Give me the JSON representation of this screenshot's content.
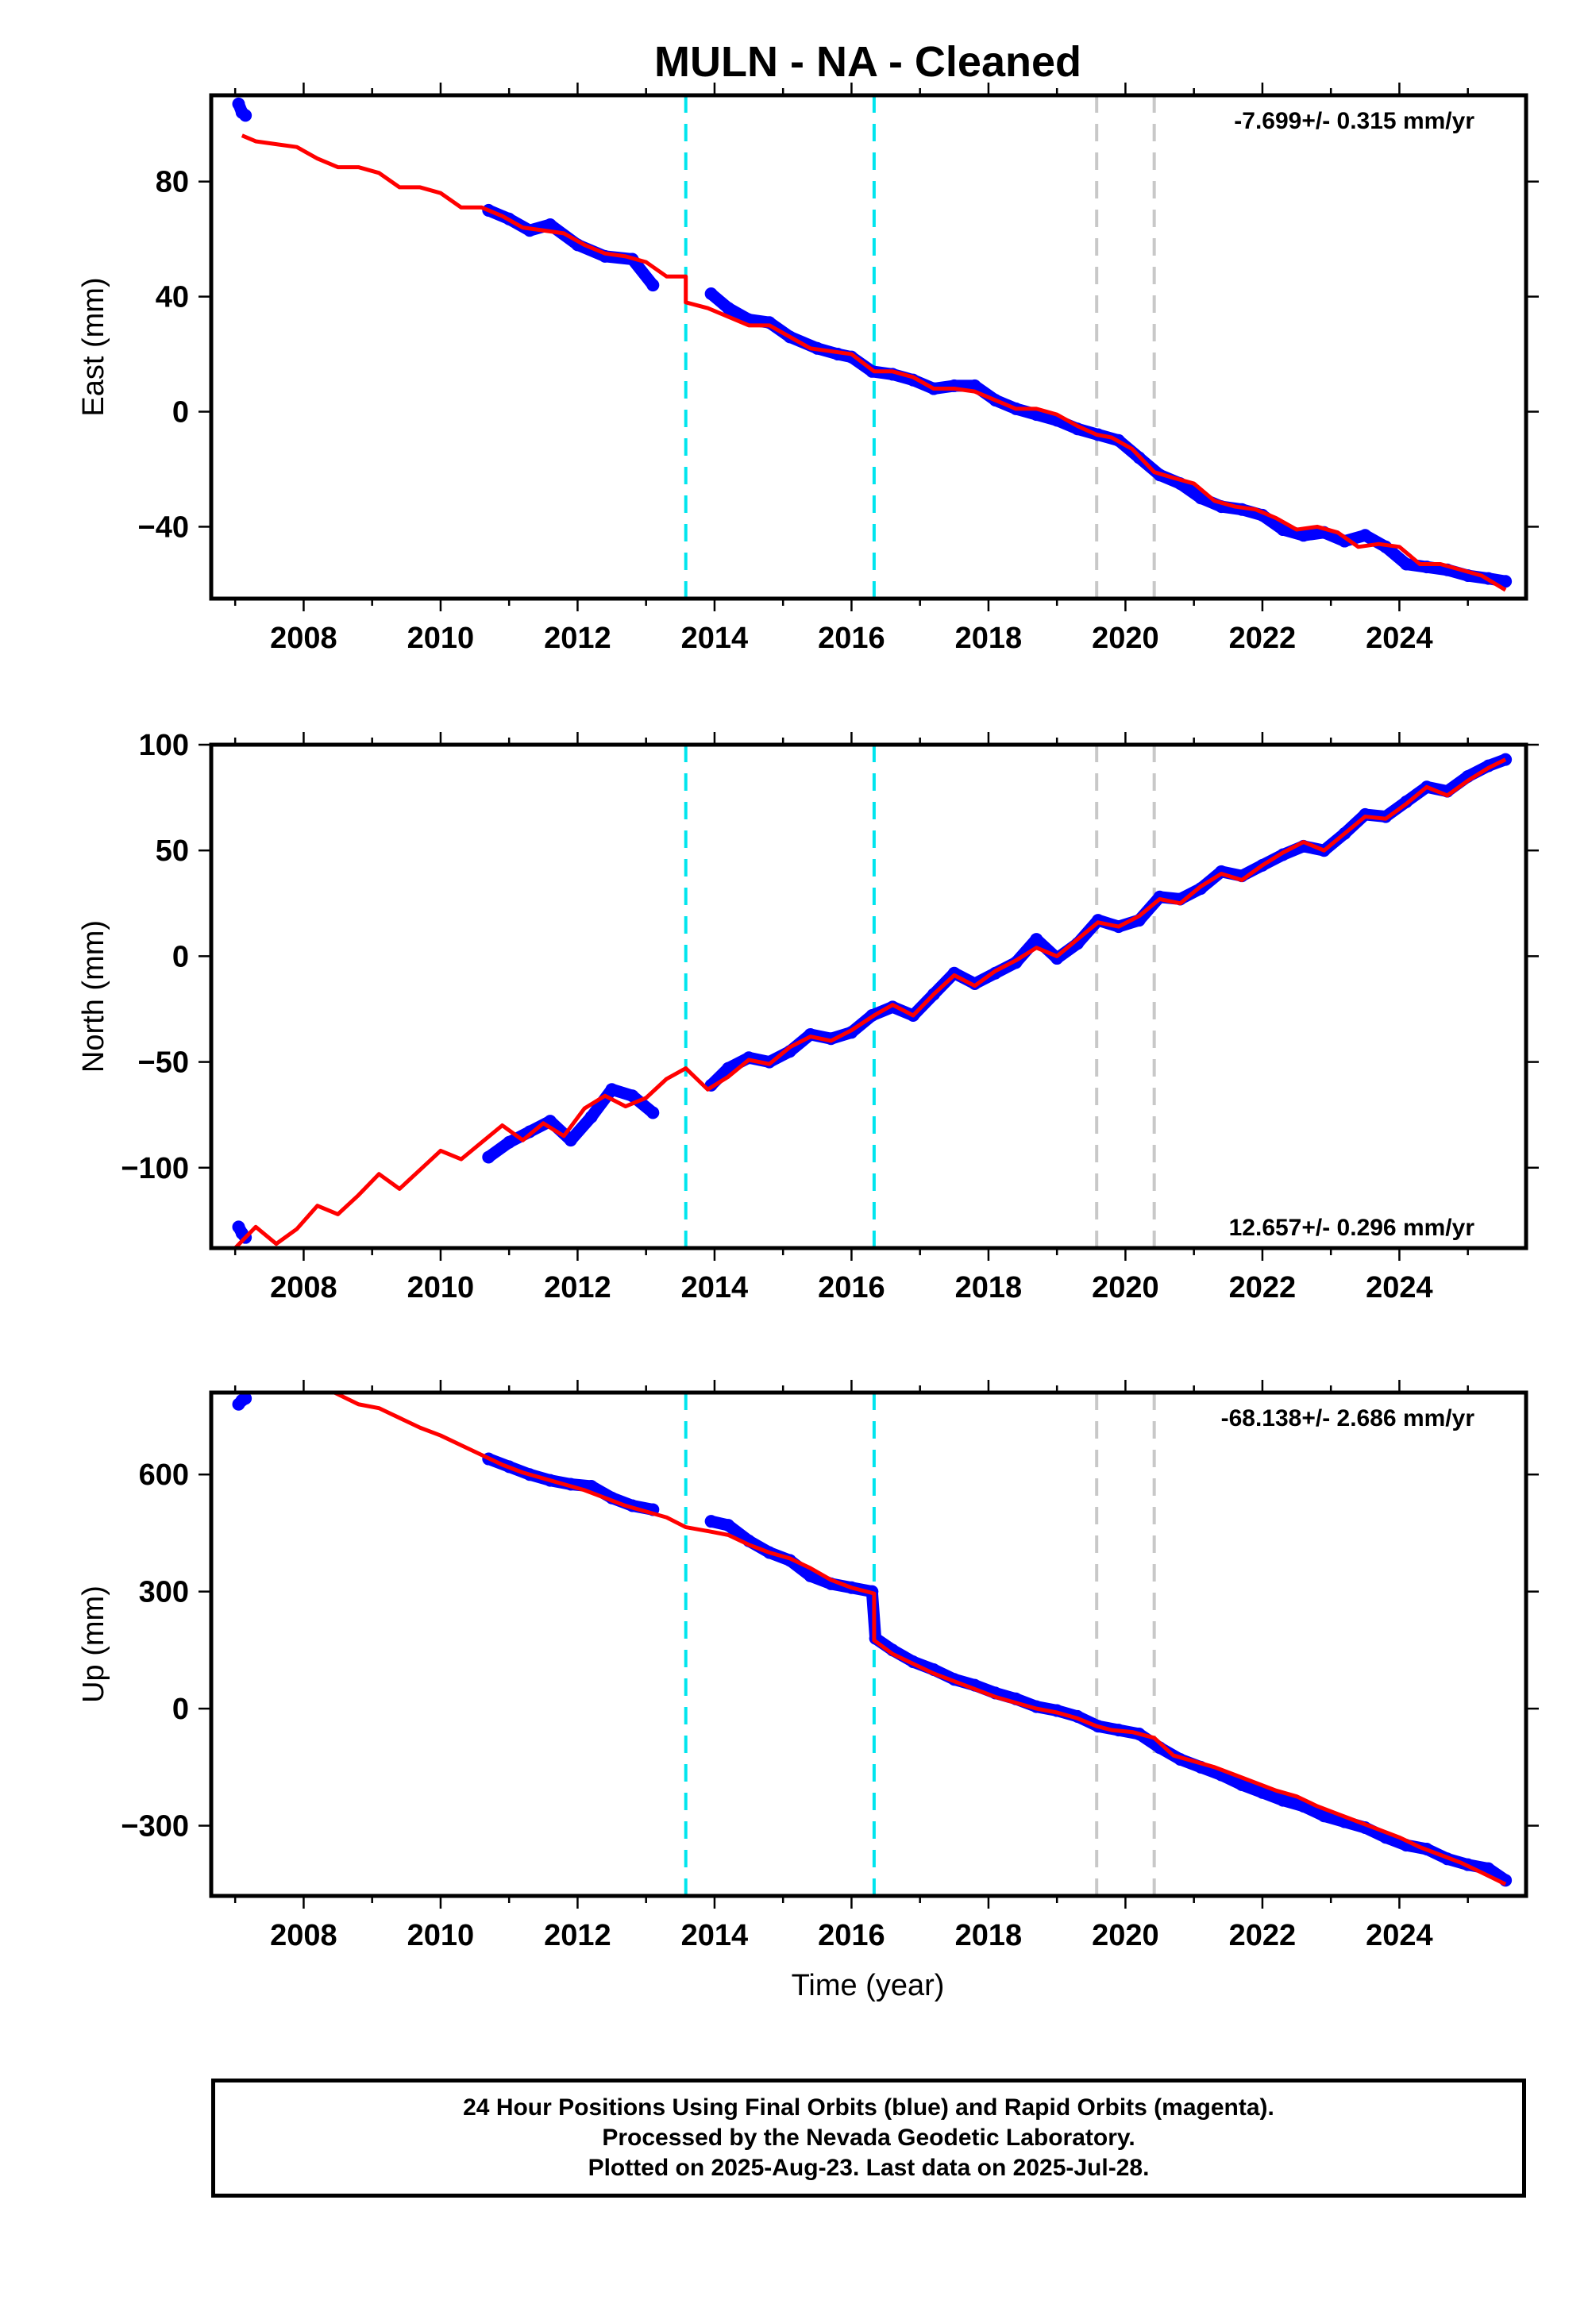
{
  "title": "MULN  - NA - Cleaned",
  "colors": {
    "observations": "#0000ff",
    "model": "#ff0000",
    "antenna_change": "#00e5ee",
    "equipment_change": "#c8c8c8"
  },
  "chart_data": [
    {
      "type": "scatter",
      "component": "East",
      "ylabel": "East (mm)",
      "xlim": [
        2006.65,
        2025.85
      ],
      "ylim": [
        -65,
        110
      ],
      "yticks": [
        -40,
        0,
        40,
        80
      ],
      "xticks": [
        2008,
        2010,
        2012,
        2014,
        2016,
        2018,
        2020,
        2022,
        2024
      ],
      "rate_label": "-7.699+/- 0.315 mm/yr",
      "rate_position": "top-right",
      "antenna_change_epochs": [
        2013.58,
        2016.33
      ],
      "equipment_change_epochs": [
        2019.58,
        2020.42
      ],
      "series": [
        {
          "role": "observations",
          "segments": [
            {
              "x": [
                2007.05,
                2007.1,
                2007.15
              ],
              "y": [
                107,
                104,
                103
              ]
            },
            {
              "x": [
                2010.7,
                2011.0,
                2011.3,
                2011.6,
                2012.0,
                2012.4,
                2012.8,
                2013.1
              ],
              "y": [
                70,
                67,
                63,
                65,
                58,
                54,
                53,
                44
              ]
            },
            {
              "x": [
                2013.95,
                2014.2,
                2014.5,
                2014.8,
                2015.1,
                2015.5,
                2015.8,
                2016.0,
                2016.3,
                2016.6,
                2016.9,
                2017.2,
                2017.5,
                2017.8,
                2018.1,
                2018.4,
                2018.7,
                2019.0,
                2019.3,
                2019.6,
                2019.9,
                2020.2,
                2020.5,
                2020.8,
                2021.1,
                2021.4,
                2021.7,
                2022.0,
                2022.3,
                2022.6,
                2022.9,
                2023.2,
                2023.5,
                2023.8,
                2024.1,
                2024.4,
                2024.7,
                2025.0,
                2025.3,
                2025.55
              ],
              "y": [
                41,
                36,
                32,
                31,
                26,
                22,
                20,
                19,
                14,
                13,
                11,
                8,
                9,
                9,
                4,
                1,
                -1,
                -3,
                -6,
                -8,
                -10,
                -16,
                -22,
                -25,
                -30,
                -33,
                -34,
                -36,
                -41,
                -43,
                -42,
                -45,
                -43,
                -47,
                -53,
                -54,
                -55,
                -57,
                -58,
                -59
              ]
            }
          ]
        },
        {
          "role": "model",
          "x": [
            2007.1,
            2007.3,
            2007.6,
            2007.9,
            2008.2,
            2008.5,
            2008.8,
            2009.1,
            2009.4,
            2009.7,
            2010.0,
            2010.3,
            2010.6,
            2010.9,
            2011.2,
            2011.5,
            2011.8,
            2012.1,
            2012.4,
            2012.7,
            2013.0,
            2013.3,
            2013.58,
            2013.58,
            2013.9,
            2014.2,
            2014.5,
            2014.8,
            2015.1,
            2015.4,
            2015.7,
            2016.0,
            2016.33,
            2016.6,
            2016.9,
            2017.2,
            2017.5,
            2017.8,
            2018.1,
            2018.4,
            2018.7,
            2019.0,
            2019.3,
            2019.58,
            2019.8,
            2020.1,
            2020.42,
            2020.7,
            2021.0,
            2021.3,
            2021.6,
            2021.9,
            2022.2,
            2022.5,
            2022.8,
            2023.1,
            2023.4,
            2023.7,
            2024.0,
            2024.3,
            2024.6,
            2024.9,
            2025.2,
            2025.55
          ],
          "y": [
            96,
            94,
            93,
            92,
            88,
            85,
            85,
            83,
            78,
            78,
            76,
            71,
            71,
            68,
            64,
            63,
            62,
            58,
            55,
            54,
            52,
            47,
            47,
            38,
            36,
            33,
            30,
            30,
            26,
            22,
            21,
            20,
            14,
            14,
            12,
            8,
            8,
            7,
            4,
            1,
            1,
            -1,
            -5,
            -8,
            -9,
            -13,
            -21,
            -23,
            -25,
            -31,
            -33,
            -34,
            -37,
            -41,
            -40,
            -42,
            -47,
            -46,
            -47,
            -53,
            -53,
            -55,
            -57,
            -62
          ]
        }
      ]
    },
    {
      "type": "scatter",
      "component": "North",
      "ylabel": "North (mm)",
      "xlim": [
        2006.65,
        2025.85
      ],
      "ylim": [
        -138,
        100
      ],
      "yticks": [
        -100,
        -50,
        0,
        50,
        100
      ],
      "xticks": [
        2008,
        2010,
        2012,
        2014,
        2016,
        2018,
        2020,
        2022,
        2024
      ],
      "rate_label": "12.657+/- 0.296 mm/yr",
      "rate_position": "bottom-right",
      "antenna_change_epochs": [
        2013.58,
        2016.33
      ],
      "equipment_change_epochs": [
        2019.58,
        2020.42
      ],
      "series": [
        {
          "role": "observations",
          "segments": [
            {
              "x": [
                2007.05,
                2007.1,
                2007.15
              ],
              "y": [
                -128,
                -131,
                -133
              ]
            },
            {
              "x": [
                2010.7,
                2011.0,
                2011.3,
                2011.6,
                2011.9,
                2012.2,
                2012.5,
                2012.8,
                2013.1
              ],
              "y": [
                -95,
                -88,
                -83,
                -78,
                -87,
                -76,
                -63,
                -66,
                -74
              ]
            },
            {
              "x": [
                2013.95,
                2014.2,
                2014.5,
                2014.8,
                2015.1,
                2015.4,
                2015.7,
                2016.0,
                2016.3,
                2016.6,
                2016.9,
                2017.2,
                2017.5,
                2017.8,
                2018.1,
                2018.4,
                2018.7,
                2019.0,
                2019.3,
                2019.6,
                2019.9,
                2020.2,
                2020.5,
                2020.8,
                2021.1,
                2021.4,
                2021.7,
                2022.0,
                2022.3,
                2022.6,
                2022.9,
                2023.2,
                2023.5,
                2023.8,
                2024.1,
                2024.4,
                2024.7,
                2025.0,
                2025.3,
                2025.55
              ],
              "y": [
                -61,
                -53,
                -48,
                -50,
                -45,
                -37,
                -39,
                -36,
                -28,
                -24,
                -28,
                -18,
                -8,
                -13,
                -8,
                -3,
                8,
                -1,
                6,
                17,
                14,
                17,
                28,
                27,
                32,
                40,
                38,
                43,
                48,
                52,
                50,
                58,
                67,
                66,
                73,
                80,
                78,
                85,
                90,
                93
              ]
            }
          ]
        },
        {
          "role": "model",
          "x": [
            2007.0,
            2007.3,
            2007.6,
            2007.9,
            2008.2,
            2008.5,
            2008.8,
            2009.1,
            2009.4,
            2009.7,
            2010.0,
            2010.3,
            2010.6,
            2010.9,
            2011.2,
            2011.5,
            2011.8,
            2012.1,
            2012.4,
            2012.7,
            2013.0,
            2013.3,
            2013.58,
            2013.9,
            2014.2,
            2014.5,
            2014.8,
            2015.1,
            2015.4,
            2015.7,
            2016.0,
            2016.33,
            2016.6,
            2016.9,
            2017.2,
            2017.5,
            2017.8,
            2018.1,
            2018.4,
            2018.7,
            2019.0,
            2019.3,
            2019.6,
            2019.9,
            2020.2,
            2020.5,
            2020.8,
            2021.1,
            2021.4,
            2021.7,
            2022.0,
            2022.3,
            2022.6,
            2022.9,
            2023.2,
            2023.5,
            2023.8,
            2024.1,
            2024.4,
            2024.7,
            2025.0,
            2025.3,
            2025.55
          ],
          "y": [
            -138,
            -128,
            -136,
            -129,
            -118,
            -122,
            -113,
            -103,
            -110,
            -101,
            -92,
            -96,
            -88,
            -80,
            -87,
            -79,
            -85,
            -72,
            -66,
            -71,
            -67,
            -58,
            -53,
            -63,
            -57,
            -49,
            -51,
            -43,
            -38,
            -40,
            -35,
            -28,
            -23,
            -28,
            -18,
            -9,
            -14,
            -7,
            -2,
            4,
            0,
            8,
            16,
            14,
            19,
            27,
            25,
            33,
            39,
            36,
            43,
            49,
            54,
            50,
            58,
            66,
            65,
            72,
            80,
            76,
            83,
            89,
            93
          ]
        }
      ]
    },
    {
      "type": "scatter",
      "component": "Up",
      "ylabel": "Up (mm)",
      "xlim": [
        2006.65,
        2025.85
      ],
      "ylim": [
        -480,
        810
      ],
      "yticks": [
        -300,
        0,
        300,
        600
      ],
      "xticks": [
        2008,
        2010,
        2012,
        2014,
        2016,
        2018,
        2020,
        2022,
        2024
      ],
      "xlabel": "Time (year)",
      "rate_label": "-68.138+/- 2.686 mm/yr",
      "rate_position": "top-right",
      "antenna_change_epochs": [
        2013.58,
        2016.33
      ],
      "equipment_change_epochs": [
        2019.58,
        2020.42
      ],
      "series": [
        {
          "role": "observations",
          "segments": [
            {
              "x": [
                2007.05,
                2007.1,
                2007.15
              ],
              "y": [
                780,
                790,
                795
              ]
            },
            {
              "x": [
                2010.7,
                2011.0,
                2011.3,
                2011.6,
                2011.9,
                2012.2,
                2012.5,
                2012.8,
                2013.1
              ],
              "y": [
                640,
                620,
                600,
                585,
                575,
                570,
                540,
                520,
                510
              ]
            },
            {
              "x": [
                2013.95,
                2014.2,
                2014.5,
                2014.8,
                2015.1,
                2015.4,
                2015.7,
                2016.0,
                2016.3,
                2016.35,
                2016.6,
                2016.9,
                2017.2,
                2017.5,
                2017.8,
                2018.1,
                2018.4,
                2018.7,
                2019.0,
                2019.3,
                2019.6,
                2019.9,
                2020.2,
                2020.5,
                2020.8,
                2021.1,
                2021.4,
                2021.7,
                2022.0,
                2022.3,
                2022.6,
                2022.9,
                2023.2,
                2023.5,
                2023.8,
                2024.1,
                2024.4,
                2024.7,
                2025.0,
                2025.3,
                2025.55
              ],
              "y": [
                480,
                470,
                430,
                400,
                380,
                340,
                320,
                310,
                300,
                180,
                150,
                120,
                100,
                75,
                60,
                40,
                25,
                5,
                -5,
                -20,
                -45,
                -55,
                -65,
                -100,
                -130,
                -150,
                -170,
                -195,
                -215,
                -235,
                -250,
                -275,
                -290,
                -305,
                -330,
                -350,
                -360,
                -385,
                -400,
                -410,
                -440
              ]
            }
          ]
        },
        {
          "role": "model",
          "x": [
            2008.45,
            2008.8,
            2009.1,
            2009.4,
            2009.7,
            2010.0,
            2010.3,
            2010.6,
            2010.9,
            2011.2,
            2011.5,
            2011.8,
            2012.1,
            2012.4,
            2012.7,
            2013.0,
            2013.3,
            2013.58,
            2013.9,
            2014.2,
            2014.5,
            2014.8,
            2015.1,
            2015.4,
            2015.7,
            2016.0,
            2016.33,
            2016.33,
            2016.6,
            2016.9,
            2017.2,
            2017.5,
            2017.8,
            2018.1,
            2018.4,
            2018.7,
            2019.0,
            2019.3,
            2019.58,
            2019.8,
            2020.1,
            2020.42,
            2020.7,
            2021.0,
            2021.3,
            2021.6,
            2021.9,
            2022.2,
            2022.5,
            2022.8,
            2023.1,
            2023.4,
            2023.7,
            2024.0,
            2024.3,
            2024.6,
            2024.9,
            2025.2,
            2025.55
          ],
          "y": [
            810,
            780,
            770,
            745,
            720,
            700,
            675,
            650,
            625,
            605,
            590,
            575,
            560,
            540,
            520,
            505,
            490,
            465,
            455,
            445,
            420,
            400,
            385,
            360,
            330,
            310,
            295,
            175,
            140,
            115,
            90,
            70,
            50,
            30,
            15,
            0,
            -10,
            -25,
            -45,
            -55,
            -60,
            -75,
            -120,
            -135,
            -150,
            -170,
            -190,
            -210,
            -225,
            -250,
            -270,
            -290,
            -310,
            -330,
            -355,
            -375,
            -395,
            -420,
            -450
          ]
        }
      ]
    }
  ],
  "footer": {
    "line1": "24 Hour Positions Using Final Orbits (blue) and Rapid Orbits (magenta).",
    "line2": "Processed by the Nevada Geodetic Laboratory.",
    "line3": "Plotted on 2025-Aug-23. Last data on 2025-Jul-28."
  }
}
